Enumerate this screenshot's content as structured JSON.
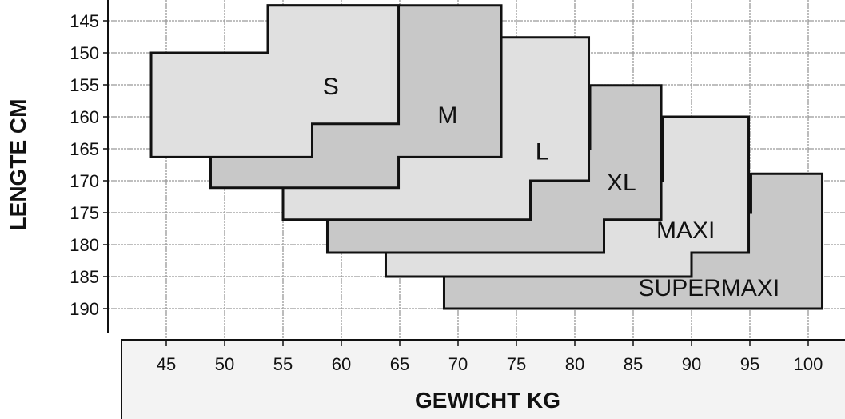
{
  "chart_data": {
    "type": "area",
    "xlabel": "GEWICHT KG",
    "ylabel": "LENGTE CM",
    "xlim": [
      45,
      100
    ],
    "ylim": [
      145,
      190
    ],
    "y_inverted": true,
    "x_ticks": [
      45,
      50,
      55,
      60,
      65,
      70,
      75,
      80,
      85,
      90,
      95,
      100
    ],
    "y_ticks": [
      145,
      150,
      155,
      160,
      165,
      170,
      175,
      180,
      185,
      190
    ],
    "grid": true,
    "colors": {
      "light": "#e0e0e0",
      "dark": "#c8c8c8",
      "outline": "#111111",
      "grid": "#999999",
      "xaxis_panel": "#f3f3f3"
    },
    "regions": [
      {
        "name": "SUPERMAXI",
        "shade": "dark",
        "label_at": [
          91.5,
          188
        ],
        "polygon": [
          [
            68.8,
            175
          ],
          [
            95.1,
            175
          ],
          [
            95.1,
            168.9
          ],
          [
            101.2,
            168.9
          ],
          [
            101.2,
            190
          ],
          [
            68.8,
            190
          ]
        ]
      },
      {
        "name": "MAXI",
        "shade": "light",
        "label_at": [
          89.5,
          179
        ],
        "polygon": [
          [
            63.8,
            170
          ],
          [
            87.5,
            170
          ],
          [
            87.5,
            160
          ],
          [
            94.9,
            160
          ],
          [
            94.9,
            181.25
          ],
          [
            90,
            181.25
          ],
          [
            90,
            185
          ],
          [
            63.8,
            185
          ]
        ]
      },
      {
        "name": "XL",
        "shade": "dark",
        "label_at": [
          84,
          171.5
        ],
        "polygon": [
          [
            58.8,
            165
          ],
          [
            81.3,
            165
          ],
          [
            81.3,
            155.1
          ],
          [
            87.4,
            155.1
          ],
          [
            87.4,
            176.1
          ],
          [
            82.5,
            176.1
          ],
          [
            82.5,
            181.25
          ],
          [
            58.8,
            181.25
          ]
        ]
      },
      {
        "name": "L",
        "shade": "light",
        "label_at": [
          77.2,
          166.7
        ],
        "polygon": [
          [
            55,
            147.6
          ],
          [
            81.2,
            147.6
          ],
          [
            81.2,
            170
          ],
          [
            76.2,
            170
          ],
          [
            76.2,
            176.1
          ],
          [
            55,
            176.1
          ]
        ]
      },
      {
        "name": "M",
        "shade": "dark",
        "label_at": [
          69.1,
          161
        ],
        "polygon": [
          [
            48.8,
            150
          ],
          [
            53.7,
            150
          ],
          [
            53.7,
            142.6
          ],
          [
            73.7,
            142.6
          ],
          [
            73.7,
            166.3
          ],
          [
            64.9,
            166.3
          ],
          [
            64.9,
            171.1
          ],
          [
            48.8,
            171.1
          ]
        ]
      },
      {
        "name": "S",
        "shade": "light",
        "label_at": [
          59.1,
          156.5
        ],
        "polygon": [
          [
            43.7,
            150
          ],
          [
            53.7,
            150
          ],
          [
            53.7,
            142.6
          ],
          [
            64.9,
            142.6
          ],
          [
            64.9,
            161.1
          ],
          [
            57.5,
            161.1
          ],
          [
            57.5,
            166.3
          ],
          [
            43.7,
            166.3
          ]
        ]
      }
    ]
  }
}
